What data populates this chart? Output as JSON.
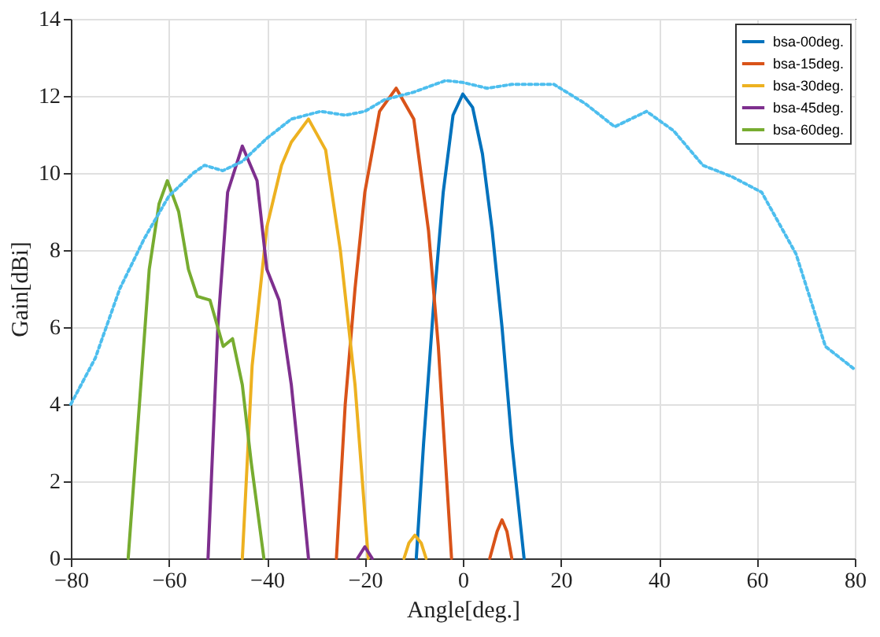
{
  "chart_data": {
    "type": "line",
    "xlabel": "Angle[deg.]",
    "ylabel": "Gain[dBi]",
    "xlim": [
      -80,
      80
    ],
    "ylim": [
      0,
      14
    ],
    "xticks": [
      -80,
      -60,
      -40,
      -20,
      0,
      20,
      40,
      60,
      80
    ],
    "yticks": [
      0,
      2,
      4,
      6,
      8,
      10,
      12,
      14
    ],
    "grid": true,
    "legend": "top right",
    "line_style": "solid",
    "marker": "none",
    "series": [
      {
        "name": "bsa-00deg.",
        "color": "#0072bd",
        "x": [
          -9.5,
          -8,
          -6,
          -4,
          -2,
          0,
          2,
          4,
          6,
          8,
          10,
          12.5
        ],
        "values": [
          0,
          3,
          6.5,
          9.5,
          11.5,
          12.05,
          11.7,
          10.5,
          8.5,
          6,
          3,
          0
        ]
      },
      {
        "name": "bsa-15deg.",
        "color": "#d95319",
        "x": [
          -25.8,
          -24,
          -22,
          -20,
          -17,
          -13.6,
          -10,
          -7,
          -5,
          -2.3,
          null,
          5.5,
          7,
          8,
          9,
          10
        ],
        "values": [
          0,
          4,
          7,
          9.5,
          11.6,
          12.2,
          11.4,
          8.5,
          5.5,
          0,
          null,
          0,
          0.7,
          1.0,
          0.7,
          0
        ]
      },
      {
        "name": "bsa-30deg.",
        "color": "#edb120",
        "x": [
          -45,
          -43,
          -40,
          -37,
          -35,
          -31.5,
          -28,
          -25,
          -22,
          -19.3,
          null,
          -12,
          -11,
          -9.8,
          -8.5,
          -7.5
        ],
        "values": [
          0,
          5,
          8.6,
          10.2,
          10.8,
          11.4,
          10.6,
          8,
          4.5,
          0,
          null,
          0,
          0.4,
          0.6,
          0.4,
          0
        ]
      },
      {
        "name": "bsa-45deg.",
        "color": "#7e2f8e",
        "x": [
          -52,
          -50,
          -48,
          -45,
          -42,
          -40,
          -37.5,
          -35,
          -33,
          -31.5,
          null,
          -21.5,
          -20,
          -18.5
        ],
        "values": [
          0,
          6,
          9.5,
          10.7,
          9.8,
          7.5,
          6.7,
          4.5,
          2,
          0,
          null,
          0,
          0.3,
          0
        ]
      },
      {
        "name": "bsa-60deg.",
        "color": "#77ac30",
        "x": [
          -68.3,
          -66,
          -64,
          -62,
          -60.3,
          -58,
          -56,
          -54.2,
          -51.6,
          -48.9,
          -47,
          -45,
          -43.2,
          -40.6
        ],
        "values": [
          0,
          4,
          7.5,
          9.2,
          9.8,
          9.0,
          7.5,
          6.8,
          6.7,
          5.5,
          5.7,
          4.5,
          2.5,
          0
        ]
      },
      {
        "color": "#4dbeee",
        "line_style": "dotted",
        "x": [
          -80,
          -75,
          -70,
          -65,
          -60,
          -55,
          -52.7,
          -49,
          -45,
          -40,
          -35,
          -29,
          -24,
          -20,
          -16,
          -10,
          -3.5,
          0,
          5,
          10,
          18.6,
          25,
          31,
          37.5,
          43,
          49,
          55,
          61,
          68,
          74,
          80
        ],
        "values": [
          4.0,
          5.2,
          7,
          8.3,
          9.4,
          10.0,
          10.2,
          10.06,
          10.3,
          10.9,
          11.4,
          11.6,
          11.5,
          11.6,
          11.9,
          12.1,
          12.4,
          12.35,
          12.2,
          12.3,
          12.3,
          11.8,
          11.2,
          11.6,
          11.1,
          10.2,
          9.9,
          9.5,
          7.9,
          5.5,
          4.9
        ]
      }
    ]
  }
}
